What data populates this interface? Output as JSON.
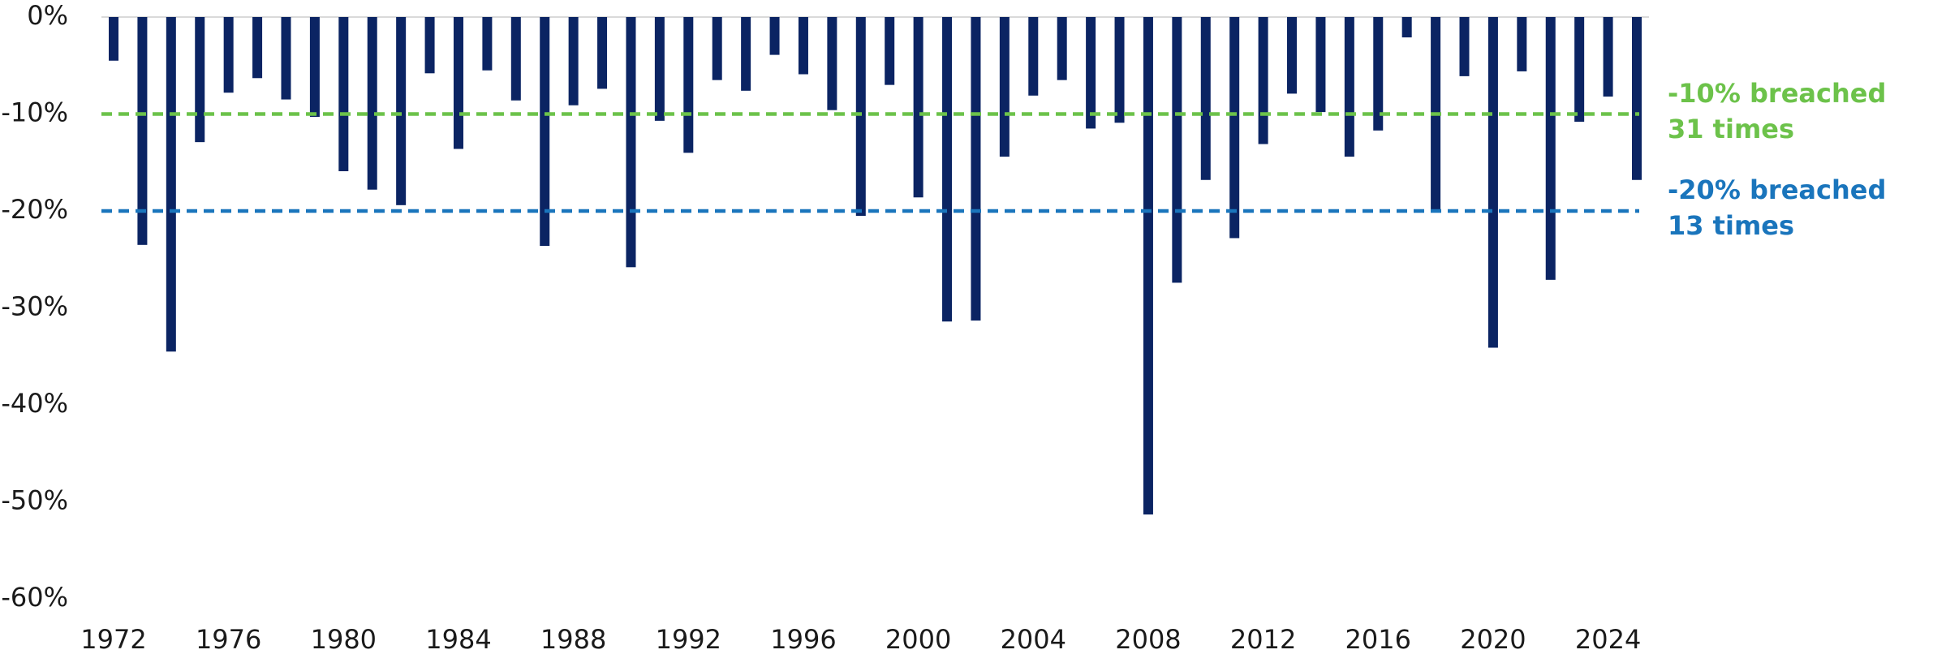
{
  "chart_data": {
    "type": "bar",
    "categories": [
      "1972",
      null,
      null,
      null,
      "1976",
      null,
      null,
      null,
      "1980",
      null,
      null,
      null,
      "1984",
      null,
      null,
      null,
      "1988",
      null,
      null,
      null,
      "1992",
      null,
      null,
      null,
      "1996",
      null,
      null,
      null,
      "2000",
      null,
      null,
      null,
      "2004",
      null,
      null,
      null,
      "2008",
      null,
      null,
      null,
      "2012",
      null,
      null,
      null,
      "2016",
      null,
      null,
      null,
      "2020",
      null,
      null,
      null,
      "2024",
      null
    ],
    "values": [
      -4.5,
      -23.5,
      -34.5,
      -12.9,
      -7.8,
      -6.3,
      -8.5,
      -10.3,
      -15.9,
      -17.8,
      -19.4,
      -5.8,
      -13.6,
      -5.5,
      -8.6,
      -23.6,
      -9.1,
      -7.4,
      -25.8,
      -10.7,
      -14.0,
      -6.5,
      -7.6,
      -3.9,
      -5.9,
      -9.6,
      -20.5,
      -7.0,
      -18.6,
      -31.4,
      -31.3,
      -14.4,
      -8.1,
      -6.5,
      -11.5,
      -10.9,
      -51.3,
      -27.4,
      -16.8,
      -22.8,
      -13.1,
      -7.9,
      -9.8,
      -14.4,
      -11.7,
      -2.1,
      -20.1,
      -6.1,
      -34.1,
      -5.6,
      -27.1,
      -10.8,
      -8.2,
      -16.8
    ],
    "color": "#0b2463",
    "ylim": [
      -60,
      0
    ],
    "yticks": [
      {
        "value": 0,
        "label": "0%"
      },
      {
        "value": -10,
        "label": "-10%"
      },
      {
        "value": -20,
        "label": "-20%"
      },
      {
        "value": -30,
        "label": "-30%"
      },
      {
        "value": -40,
        "label": "-40%"
      },
      {
        "value": -50,
        "label": "-50%"
      },
      {
        "value": -60,
        "label": "-60%"
      }
    ],
    "reference_lines": [
      {
        "value": -10,
        "label": "-10% breached 31 times",
        "color": "#6cc24a"
      },
      {
        "value": -20,
        "label": "-20% breached 13 times",
        "color": "#1a75bc"
      }
    ]
  }
}
